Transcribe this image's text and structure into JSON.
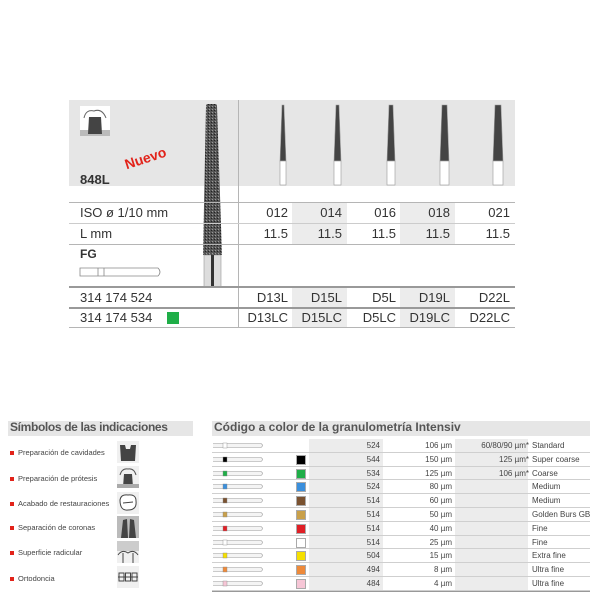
{
  "product": {
    "code": "848L",
    "badge": "Nuevo",
    "iso_label": "ISO ø 1/10 mm",
    "l_label": "L mm",
    "shank_type": "FG",
    "iso_values": [
      "012",
      "014",
      "016",
      "018",
      "021"
    ],
    "l_values": [
      "11.5",
      "11.5",
      "11.5",
      "11.5",
      "11.5"
    ],
    "articles": [
      {
        "number": "314 174 524",
        "swatch": null,
        "codes": [
          "D13L",
          "D15L",
          "D5L",
          "D19L",
          "D22L"
        ]
      },
      {
        "number": "314 174 534",
        "swatch": "#1fae48",
        "codes": [
          "D13LC",
          "D15LC",
          "D5LC",
          "D19LC",
          "D22LC"
        ]
      }
    ]
  },
  "symbols": {
    "title": "Símbolos de las indicaciones",
    "items": [
      {
        "label": "Preparación de cavidades",
        "icon": "cavity-prep-icon"
      },
      {
        "label": "Preparación de prótesis",
        "icon": "crown-prep-icon"
      },
      {
        "label": "Acabado de restauraciones",
        "icon": "restoration-finish-icon"
      },
      {
        "label": "Separación de coronas",
        "icon": "crown-separation-icon"
      },
      {
        "label": "Superficie radicular",
        "icon": "root-surface-icon"
      },
      {
        "label": "Ortodoncia",
        "icon": "orthodontics-icon"
      }
    ]
  },
  "grit": {
    "title": "Código a color de la granulometría Intensiv",
    "rows": [
      {
        "color": null,
        "code": "524",
        "size": "106 µm",
        "alt": "60/80/90 µm*",
        "name": "Standard"
      },
      {
        "color": "#000000",
        "code": "544",
        "size": "150 µm",
        "alt": "125 µm*",
        "name": "Super coarse"
      },
      {
        "color": "#1fae48",
        "code": "534",
        "size": "125 µm",
        "alt": "106 µm*",
        "name": "Coarse"
      },
      {
        "color": "#3b8fdc",
        "code": "524",
        "size": "80 µm",
        "alt": "",
        "name": "Medium"
      },
      {
        "color": "#7a5230",
        "code": "514",
        "size": "60 µm",
        "alt": "",
        "name": "Medium"
      },
      {
        "color": "#c9a04a",
        "code": "514",
        "size": "50 µm",
        "alt": "",
        "name": "Golden Burs GB"
      },
      {
        "color": "#e01f26",
        "code": "514",
        "size": "40 µm",
        "alt": "",
        "name": "Fine"
      },
      {
        "color": "#ffffff",
        "code": "514",
        "size": "25 µm",
        "alt": "",
        "name": "Fine"
      },
      {
        "color": "#f5e000",
        "code": "504",
        "size": "15 µm",
        "alt": "",
        "name": "Extra fine"
      },
      {
        "color": "#ee8a3a",
        "code": "494",
        "size": "8 µm",
        "alt": "",
        "name": "Ultra fine"
      },
      {
        "color": "#f6c6d6",
        "code": "484",
        "size": "4 µm",
        "alt": "",
        "name": "Ultra fine"
      }
    ]
  }
}
